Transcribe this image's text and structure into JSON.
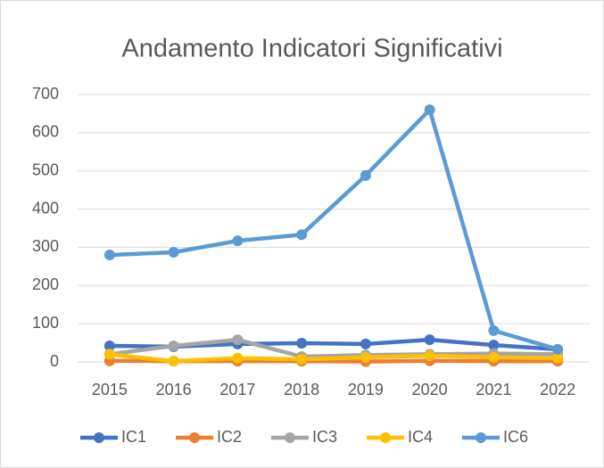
{
  "chart_data": {
    "type": "line",
    "title": "Andamento Indicatori Significativi",
    "categories": [
      "2015",
      "2016",
      "2017",
      "2018",
      "2019",
      "2020",
      "2021",
      "2022"
    ],
    "series": [
      {
        "name": "IC1",
        "color": "#4472c4",
        "values": [
          42,
          40,
          47,
          49,
          47,
          58,
          44,
          33
        ]
      },
      {
        "name": "IC2",
        "color": "#ed7d31",
        "values": [
          3,
          2,
          2,
          2,
          1,
          3,
          2,
          2
        ]
      },
      {
        "name": "IC3",
        "color": "#a5a5a5",
        "values": [
          20,
          42,
          58,
          14,
          18,
          20,
          22,
          20
        ]
      },
      {
        "name": "IC4",
        "color": "#ffc000",
        "values": [
          20,
          2,
          10,
          7,
          12,
          16,
          12,
          10
        ]
      },
      {
        "name": "IC6",
        "color": "#5b9bd5",
        "values": [
          280,
          287,
          317,
          333,
          488,
          660,
          82,
          33
        ]
      }
    ],
    "ylim": [
      0,
      700
    ],
    "yticks": [
      0,
      100,
      200,
      300,
      400,
      500,
      600,
      700
    ],
    "grid": true,
    "legend": "bottom"
  }
}
